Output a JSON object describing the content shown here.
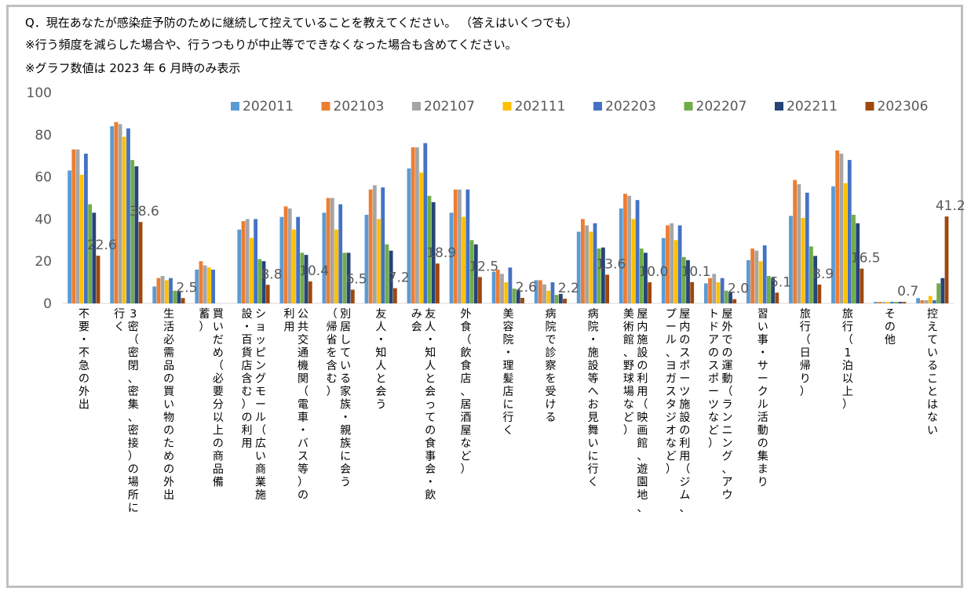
{
  "header": {
    "line1": "Q．現在あなたが感染症予防のために継続して控えていることを教えてください。 （答えはいくつでも）",
    "line2": "※行う頻度を減らした場合や、行うつもりが中止等でできなくなった場合も含めてください。",
    "line3": "※グラフ数値は 2023 年 6 月時のみ表示"
  },
  "chart_data": {
    "type": "bar",
    "ylim": [
      0,
      100
    ],
    "yticks": [
      0,
      20,
      40,
      60,
      80,
      100
    ],
    "legend_position": "top-right",
    "categories": [
      "不要・不急の外出",
      "3密（密閉、密集、密接）の場所に行く",
      "生活必需品の買い物のための外出",
      "買いだめ（必要分以上の商品備蓄）",
      "ショッピングモール（広い商業施設・百貨店含む）の利用",
      "公共交通機関（電車・バス等）の利用",
      "別居している家族・親族に会う（帰省を含む）",
      "友人・知人と会う",
      "友人・知人と会っての食事会・飲み会",
      "外食（飲食店、居酒屋など）",
      "美容院・理髪店に行く",
      "病院で診察を受ける",
      "病院・施設等へお見舞いに行く",
      "屋内施設の利用（映画館、遊園地、美術館、野球場など）",
      "屋内のスポーツ施設の利用（ジム、プール、ヨガスタジオなど）",
      "屋外での運動（ランニング、アウトドアのスポーツなど）",
      "習い事・サークル活動の集まり",
      "旅行（日帰り）",
      "旅行（1泊以上）",
      "その他",
      "控えていることはない"
    ],
    "category_lines": [
      [
        "不要・不急の外出"
      ],
      [
        "3密（密閉、密集、密接）の場所に",
        "行く"
      ],
      [
        "生活必需品の買い物のための外出"
      ],
      [
        "買いだめ（必要分以上の商品備",
        "蓄）"
      ],
      [
        "ショッピングモール（広い商業施",
        "設・百貨店含む）の利用"
      ],
      [
        "公共交通機関（電車・バス等）の",
        "利用"
      ],
      [
        "別居している家族・親族に会う",
        "（帰省を含む）"
      ],
      [
        "友人・知人と会う"
      ],
      [
        "友人・知人と会っての食事会・飲",
        "み会"
      ],
      [
        "外食（飲食店、居酒屋など）"
      ],
      [
        "美容院・理髪店に行く"
      ],
      [
        "病院で診察を受ける"
      ],
      [
        "病院・施設等へお見舞いに行く"
      ],
      [
        "屋内施設の利用（映画館、遊園地、",
        "美術館、野球場など）"
      ],
      [
        "屋内のスポーツ施設の利用（ジム、",
        "プール、ヨガスタジオなど）"
      ],
      [
        "屋外での運動（ランニング、アウ",
        "トドアのスポーツなど）"
      ],
      [
        "習い事・サークル活動の集まり"
      ],
      [
        "旅行（日帰り）"
      ],
      [
        "旅行（1泊以上）"
      ],
      [
        "その他"
      ],
      [
        "控えていることはない"
      ]
    ],
    "series": [
      {
        "name": "202011",
        "color": "#5b9bd5",
        "values": [
          63,
          84,
          8,
          16,
          35,
          41,
          43,
          42,
          64,
          43,
          15,
          11,
          34,
          45,
          31,
          9.5,
          20.5,
          41.5,
          55.5,
          0.7,
          2.5
        ]
      },
      {
        "name": "202103",
        "color": "#ed7d31",
        "values": [
          73,
          86,
          12,
          20,
          39,
          46,
          50,
          54,
          74,
          54,
          16,
          11,
          40,
          52,
          37,
          12,
          26,
          58.5,
          72.5,
          0.7,
          1.5
        ]
      },
      {
        "name": "202107",
        "color": "#a5a5a5",
        "values": [
          73,
          85,
          13,
          18,
          40,
          45,
          50,
          56,
          74,
          54,
          14,
          9,
          37,
          51,
          38,
          14,
          25,
          56.5,
          71,
          0.7,
          1.5
        ]
      },
      {
        "name": "202111",
        "color": "#ffc000",
        "values": [
          61,
          79,
          11,
          17,
          31,
          35,
          35,
          40,
          62,
          41,
          10,
          6,
          34,
          40,
          30,
          10,
          20,
          40.5,
          57,
          0.7,
          3.5
        ]
      },
      {
        "name": "202203",
        "color": "#4472c4",
        "values": [
          71,
          83,
          12,
          16,
          40,
          41,
          47,
          55,
          76,
          54,
          17,
          10,
          38,
          49,
          37,
          12,
          27.5,
          52.5,
          68,
          0.7,
          1.5
        ]
      },
      {
        "name": "202207",
        "color": "#70ad47",
        "values": [
          47,
          68,
          6,
          null,
          21,
          24,
          24,
          28,
          51,
          30,
          7,
          4,
          26,
          26,
          22,
          6,
          13,
          27,
          42,
          0.7,
          9.5
        ]
      },
      {
        "name": "202211",
        "color": "#264478",
        "values": [
          43,
          65,
          5.5,
          null,
          20,
          23,
          24,
          25,
          48,
          28,
          6.5,
          4.5,
          26.5,
          24,
          20.5,
          5,
          12,
          22.5,
          38,
          0.7,
          12
        ]
      },
      {
        "name": "202306",
        "color": "#9e480e",
        "values": [
          22.6,
          38.6,
          2.5,
          null,
          8.8,
          10.4,
          6.5,
          7.2,
          18.9,
          12.5,
          2.6,
          2.2,
          13.6,
          10.0,
          10.1,
          2.0,
          5.1,
          8.9,
          16.5,
          0.7,
          41.2
        ]
      }
    ],
    "labeled_series": "202306",
    "data_labels": [
      "22.6",
      "38.6",
      "2.5",
      "",
      "8.8",
      "10.4",
      "6.5",
      "7.2",
      "18.9",
      "12.5",
      "2.6",
      "2.2",
      "13.6",
      "10.0",
      "10.1",
      "2.0",
      "5.1",
      "8.9",
      "16.5",
      "0.7",
      "41.2"
    ]
  }
}
